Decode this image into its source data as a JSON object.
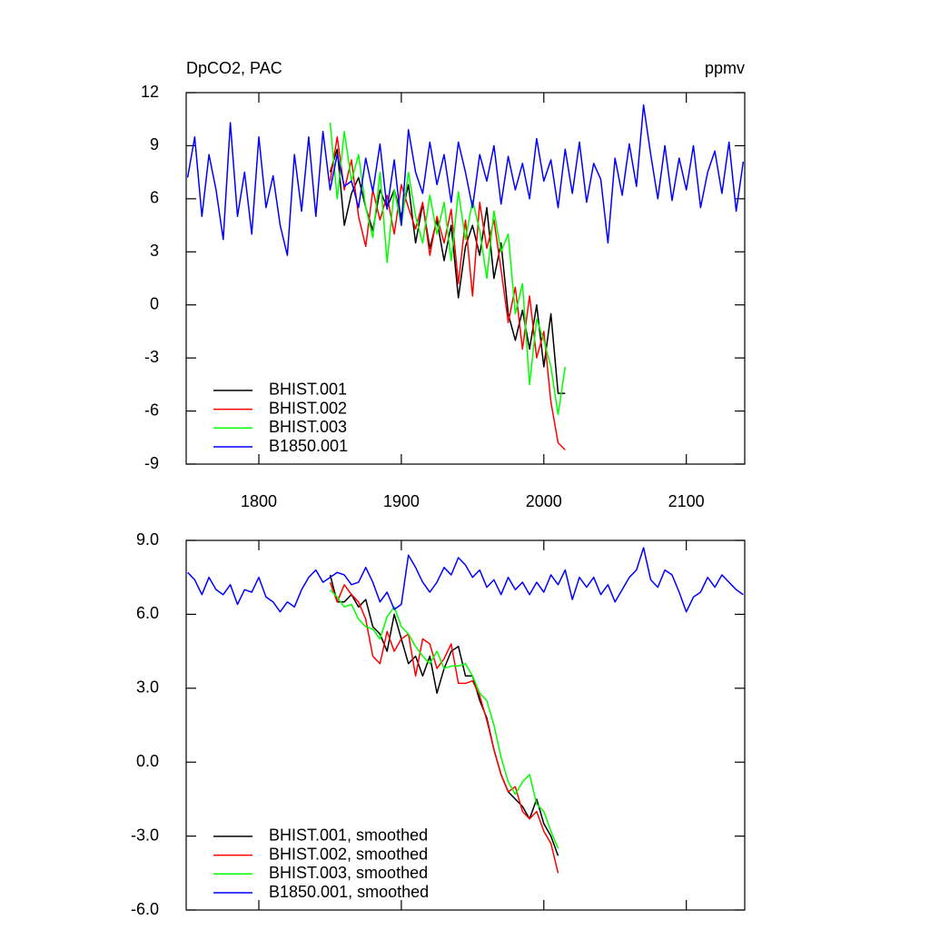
{
  "chart_data": [
    {
      "type": "line",
      "title": "DpCO2, PAC",
      "units": "ppmv",
      "xlim": [
        1749,
        2141
      ],
      "ylim": [
        -9,
        12
      ],
      "xticks": [
        1800,
        1900,
        2000,
        2100
      ],
      "yticks": [
        -9,
        -6,
        -3,
        0,
        3,
        6,
        9,
        12
      ],
      "legend": "lower left",
      "series": [
        {
          "name": "BHIST.001",
          "color": "#000000",
          "x": [
            1850,
            1855,
            1860,
            1865,
            1870,
            1875,
            1880,
            1885,
            1890,
            1895,
            1900,
            1905,
            1910,
            1915,
            1920,
            1925,
            1930,
            1935,
            1940,
            1945,
            1950,
            1955,
            1960,
            1965,
            1970,
            1975,
            1980,
            1985,
            1990,
            1995,
            2000,
            2005,
            2010,
            2015
          ],
          "values": [
            7.5,
            8.8,
            4.5,
            6.3,
            7.2,
            5.5,
            4.2,
            6.5,
            5.5,
            6.5,
            5,
            6.8,
            3.5,
            5.7,
            3.2,
            4.8,
            2.5,
            4.5,
            0.4,
            3.3,
            4.5,
            2.8,
            5.5,
            1.5,
            3.5,
            -0.5,
            -2,
            -0.3,
            -2.5,
            0,
            -3.5,
            -0.5,
            -5,
            -5
          ]
        },
        {
          "name": "BHIST.002",
          "color": "#ff0000",
          "x": [
            1850,
            1855,
            1860,
            1865,
            1870,
            1875,
            1880,
            1885,
            1890,
            1895,
            1900,
            1905,
            1910,
            1915,
            1920,
            1925,
            1930,
            1935,
            1940,
            1945,
            1950,
            1955,
            1960,
            1965,
            1970,
            1975,
            1980,
            1985,
            1990,
            1995,
            2000,
            2005,
            2010,
            2015
          ],
          "values": [
            7,
            9.5,
            6.5,
            8.2,
            5,
            3.3,
            6.5,
            4.8,
            6.2,
            4,
            6.8,
            5.5,
            4.3,
            5.8,
            2.8,
            5,
            3.5,
            5.4,
            1.2,
            4.8,
            0.5,
            5.8,
            3.2,
            4.8,
            2,
            -1,
            1,
            -2.5,
            0.5,
            -3,
            -1.5,
            -5.5,
            -7.8,
            -8.2
          ]
        },
        {
          "name": "BHIST.003",
          "color": "#00ff00",
          "x": [
            1850,
            1855,
            1860,
            1865,
            1870,
            1875,
            1880,
            1885,
            1890,
            1895,
            1900,
            1905,
            1910,
            1915,
            1920,
            1925,
            1930,
            1935,
            1940,
            1945,
            1950,
            1955,
            1960,
            1965,
            1970,
            1975,
            1980,
            1985,
            1990,
            1995,
            2000,
            2005,
            2010,
            2015
          ],
          "values": [
            10.3,
            6,
            9.8,
            7,
            8.5,
            5.5,
            3.8,
            7.5,
            2.4,
            6.5,
            4.5,
            7.5,
            5,
            3.5,
            6.2,
            4,
            5.8,
            2.5,
            6.4,
            3.7,
            5.9,
            4.2,
            1.5,
            5.3,
            3,
            4,
            -0.5,
            1.2,
            -4.5,
            -0.8,
            -2,
            -3.5,
            -6.2,
            -3.5
          ]
        },
        {
          "name": "B1850.001",
          "color": "#0000ff",
          "x": [
            1750,
            1755,
            1760,
            1765,
            1770,
            1775,
            1780,
            1785,
            1790,
            1795,
            1800,
            1805,
            1810,
            1815,
            1820,
            1825,
            1830,
            1835,
            1840,
            1845,
            1850,
            1855,
            1860,
            1865,
            1870,
            1875,
            1880,
            1885,
            1890,
            1895,
            1900,
            1905,
            1910,
            1915,
            1920,
            1925,
            1930,
            1935,
            1940,
            1945,
            1950,
            1955,
            1960,
            1965,
            1970,
            1975,
            1980,
            1985,
            1990,
            1995,
            2000,
            2005,
            2010,
            2015,
            2020,
            2025,
            2030,
            2035,
            2040,
            2045,
            2050,
            2055,
            2060,
            2065,
            2070,
            2075,
            2080,
            2085,
            2090,
            2095,
            2100,
            2105,
            2110,
            2115,
            2120,
            2125,
            2130,
            2135,
            2140
          ],
          "values": [
            7.2,
            9.5,
            5,
            8.5,
            6.5,
            3.7,
            10.3,
            5,
            7.5,
            4,
            9.5,
            5.5,
            7.3,
            4.5,
            2.8,
            8.5,
            5.3,
            9.5,
            5,
            9.8,
            6.5,
            8.5,
            6.7,
            7,
            5.5,
            8.3,
            6.4,
            9.1,
            5.4,
            8.2,
            4.5,
            9.9,
            7.5,
            6.3,
            9.2,
            6.8,
            8.5,
            5.8,
            9.2,
            7.5,
            5.5,
            8.5,
            7,
            9,
            5.7,
            8.4,
            6.5,
            8,
            6,
            9.4,
            7,
            8.2,
            5.5,
            8.8,
            6.3,
            9.2,
            5.8,
            8,
            7.1,
            3.5,
            8.3,
            6.2,
            9.1,
            6.7,
            11.3,
            8.5,
            6,
            9,
            5.9,
            8.3,
            6.5,
            9,
            5.5,
            7.5,
            8.7,
            6.3,
            9.2,
            5.3,
            8.1
          ]
        }
      ]
    },
    {
      "type": "line",
      "xlim": [
        1749,
        2141
      ],
      "ylim": [
        -6,
        9
      ],
      "xticks": [
        1800,
        1900,
        2000,
        2100
      ],
      "yticks": [
        {
          "value": -6,
          "label": "-6.0"
        },
        {
          "value": -3,
          "label": "-3.0"
        },
        {
          "value": 0,
          "label": "0.0"
        },
        {
          "value": 3,
          "label": "3.0"
        },
        {
          "value": 6,
          "label": "6.0"
        },
        {
          "value": 9,
          "label": "9.0"
        }
      ],
      "legend": "lower left",
      "series": [
        {
          "name": "BHIST.001, smoothed",
          "color": "#000000",
          "x": [
            1850,
            1855,
            1860,
            1865,
            1870,
            1875,
            1880,
            1885,
            1890,
            1895,
            1900,
            1905,
            1910,
            1915,
            1920,
            1925,
            1930,
            1935,
            1940,
            1945,
            1950,
            1955,
            1960,
            1965,
            1970,
            1975,
            1980,
            1985,
            1990,
            1995,
            2000,
            2005,
            2010
          ],
          "values": [
            7.6,
            6.5,
            6.5,
            6.8,
            6.3,
            6.6,
            5.5,
            5.2,
            4.5,
            6.0,
            5.0,
            4.0,
            4.3,
            3.5,
            4.3,
            2.8,
            3.8,
            4.5,
            4.7,
            3.5,
            3.5,
            2.5,
            1.8,
            0.5,
            -0.5,
            -1.2,
            -1.5,
            -1.8,
            -2.3,
            -1.5,
            -2.5,
            -3.0,
            -3.8
          ]
        },
        {
          "name": "BHIST.002, smoothed",
          "color": "#ff0000",
          "x": [
            1850,
            1855,
            1860,
            1865,
            1870,
            1875,
            1880,
            1885,
            1890,
            1895,
            1900,
            1905,
            1910,
            1915,
            1920,
            1925,
            1930,
            1935,
            1940,
            1945,
            1950,
            1955,
            1960,
            1965,
            1970,
            1975,
            1980,
            1985,
            1990,
            1995,
            2000,
            2005,
            2010
          ],
          "values": [
            7.3,
            6.5,
            7.2,
            6.8,
            6.5,
            5.8,
            4.3,
            4.0,
            5.3,
            4.5,
            5.0,
            5.2,
            3.5,
            5.0,
            4.8,
            3.8,
            4.2,
            4.8,
            3.2,
            3.2,
            3.3,
            2.7,
            1.7,
            0.5,
            -0.5,
            -1.2,
            -1.0,
            -2.0,
            -2.3,
            -2.0,
            -2.8,
            -3.3,
            -4.5
          ]
        },
        {
          "name": "BHIST.003, smoothed",
          "color": "#00ff00",
          "x": [
            1850,
            1855,
            1860,
            1865,
            1870,
            1875,
            1880,
            1885,
            1890,
            1895,
            1900,
            1905,
            1910,
            1915,
            1920,
            1925,
            1930,
            1935,
            1940,
            1945,
            1950,
            1955,
            1960,
            1965,
            1970,
            1975,
            1980,
            1985,
            1990,
            1995,
            2000,
            2005,
            2010
          ],
          "values": [
            7.0,
            6.7,
            6.3,
            6.4,
            5.8,
            5.5,
            5.4,
            5.0,
            5.9,
            6.3,
            5.5,
            5.2,
            4.7,
            4.3,
            4.0,
            4.5,
            3.8,
            3.9,
            3.9,
            4.0,
            3.5,
            2.8,
            2.5,
            1.5,
            0.2,
            -0.8,
            -1.3,
            -0.8,
            -0.5,
            -1.7,
            -2.0,
            -2.8,
            -3.5
          ]
        },
        {
          "name": "B1850.001, smoothed",
          "color": "#0000ff",
          "x": [
            1750,
            1755,
            1760,
            1765,
            1770,
            1775,
            1780,
            1785,
            1790,
            1795,
            1800,
            1805,
            1810,
            1815,
            1820,
            1825,
            1830,
            1835,
            1840,
            1845,
            1850,
            1855,
            1860,
            1865,
            1870,
            1875,
            1880,
            1885,
            1890,
            1895,
            1900,
            1905,
            1910,
            1915,
            1920,
            1925,
            1930,
            1935,
            1940,
            1945,
            1950,
            1955,
            1960,
            1965,
            1970,
            1975,
            1980,
            1985,
            1990,
            1995,
            2000,
            2005,
            2010,
            2015,
            2020,
            2025,
            2030,
            2035,
            2040,
            2045,
            2050,
            2055,
            2060,
            2065,
            2070,
            2075,
            2080,
            2085,
            2090,
            2095,
            2100,
            2105,
            2110,
            2115,
            2120,
            2125,
            2130,
            2135,
            2140
          ],
          "values": [
            7.7,
            7.4,
            6.8,
            7.5,
            7,
            6.8,
            7.2,
            6.4,
            7,
            6.9,
            7.5,
            6.7,
            6.5,
            6.1,
            6.5,
            6.3,
            7,
            7.5,
            7.8,
            7.3,
            7.5,
            7.7,
            7.6,
            7.2,
            7.3,
            7.9,
            7.3,
            6.5,
            6.9,
            6.2,
            6.4,
            8.4,
            7.9,
            7.3,
            6.9,
            7.3,
            7.9,
            7.6,
            8.3,
            8.0,
            7.5,
            7.8,
            7.1,
            7.4,
            6.8,
            7.5,
            7.0,
            7.3,
            6.8,
            7.3,
            6.9,
            7.6,
            7.2,
            7.8,
            6.6,
            7.5,
            7.1,
            7.5,
            6.8,
            7.2,
            6.5,
            7.0,
            7.5,
            7.8,
            8.7,
            7.4,
            7.1,
            7.8,
            7.6,
            6.9,
            6.1,
            6.7,
            6.9,
            7.5,
            7.1,
            7.6,
            7.3,
            7.0,
            6.8
          ]
        }
      ]
    }
  ]
}
